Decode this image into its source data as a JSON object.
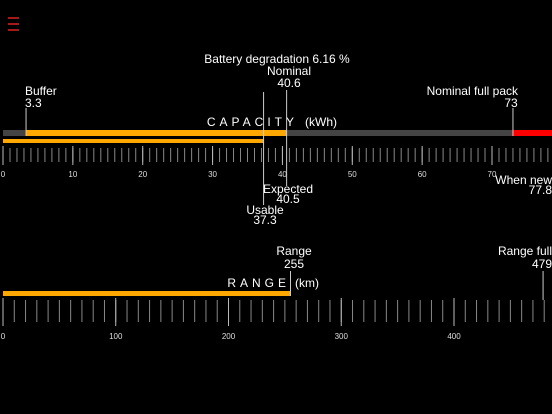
{
  "header": {
    "title": "Battery degradation 6.16 %"
  },
  "capacity": {
    "label": "CAPACITY",
    "unit": "(kWh)",
    "buffer": {
      "label": "Buffer",
      "value": 3.3
    },
    "nominal": {
      "label": "Nominal",
      "value": 40.6
    },
    "nominal_full_pack": {
      "label": "Nominal full pack",
      "value": 73
    },
    "expected": {
      "label": "Expected",
      "value": 40.5
    },
    "usable": {
      "label": "Usable",
      "value": 37.3
    },
    "when_new": {
      "label": "When new",
      "value": 77.8
    },
    "ticks": [
      0,
      10,
      20,
      30,
      40,
      50,
      60,
      70
    ]
  },
  "range": {
    "label": "RANGE",
    "unit": "(km)",
    "current": {
      "label": "Range",
      "value": 255
    },
    "full": {
      "label": "Range full",
      "value": 479
    },
    "ticks": [
      0,
      100,
      200,
      300,
      400
    ]
  }
}
